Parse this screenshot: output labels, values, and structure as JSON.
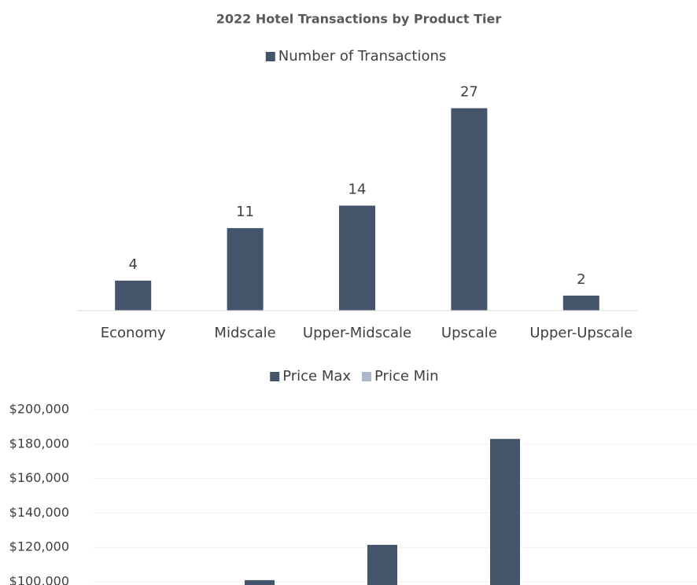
{
  "chart_data": [
    {
      "type": "bar",
      "title": "2022 Hotel Transactions by Product Tier",
      "categories": [
        "Economy",
        "Midscale",
        "Upper-Midscale",
        "Upscale",
        "Upper-Upscale"
      ],
      "series": [
        {
          "name": "Number of Transactions",
          "color": "#44546a",
          "values": [
            4,
            11,
            14,
            27,
            2
          ]
        }
      ],
      "ylim": [
        0,
        30
      ],
      "legend": "top"
    },
    {
      "type": "bar",
      "series": [
        {
          "name": "Price Max",
          "color": "#44546a",
          "values": [
            null,
            101000,
            121500,
            183000,
            null
          ]
        },
        {
          "name": "Price Min",
          "color": "#adb9ca",
          "values": [
            null,
            null,
            null,
            null,
            null
          ]
        }
      ],
      "ylim": [
        100000,
        200000
      ],
      "yticks": [
        {
          "value": 100000,
          "label": "$100,000"
        },
        {
          "value": 120000,
          "label": "$120,000"
        },
        {
          "value": 140000,
          "label": "$140,000"
        },
        {
          "value": 160000,
          "label": "$160,000"
        },
        {
          "value": 180000,
          "label": "$180,000"
        },
        {
          "value": 200000,
          "label": "$200,000"
        }
      ],
      "grid": true,
      "legend": "top"
    }
  ]
}
